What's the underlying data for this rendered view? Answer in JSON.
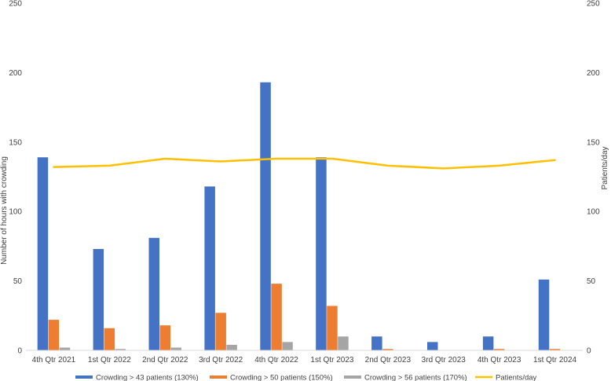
{
  "chart_data": {
    "type": "bar",
    "title": "",
    "categories": [
      "4th Qtr 2021",
      "1st Qtr 2022",
      "2nd Qtr 2022",
      "3rd Qtr 2022",
      "4th Qtr 2022",
      "1st Qtr 2023",
      "2nd Qtr 2023",
      "3rd Qtr 2023",
      "4th Qtr 2023",
      "1st Qtr 2024"
    ],
    "series": [
      {
        "name": "Crowding > 43 patients (130%)",
        "type": "bar",
        "axis": "left",
        "color": "#4472C4",
        "values": [
          139,
          73,
          81,
          118,
          193,
          139,
          10,
          6,
          10,
          51
        ]
      },
      {
        "name": "Crowding > 50 patients (150%)",
        "type": "bar",
        "axis": "left",
        "color": "#ED7D31",
        "values": [
          22,
          16,
          18,
          27,
          48,
          32,
          1,
          0,
          1,
          1
        ]
      },
      {
        "name": "Crowding > 56 patients (170%)",
        "type": "bar",
        "axis": "left",
        "color": "#A5A5A5",
        "values": [
          2,
          1,
          2,
          4,
          6,
          10,
          0,
          0,
          0,
          0
        ]
      },
      {
        "name": "Patients/day",
        "type": "line",
        "axis": "right",
        "color": "#FFC000",
        "values": [
          132,
          133,
          138,
          136,
          138,
          138,
          133,
          131,
          133,
          137
        ]
      }
    ],
    "ylabel": "Number of hours with crowding",
    "y2label": "Patients/day",
    "ylim": [
      0,
      250
    ],
    "y2lim": [
      0,
      250
    ],
    "yticks": [
      0,
      50,
      100,
      150,
      200,
      250
    ],
    "y2ticks": [
      0,
      50,
      100,
      150,
      200,
      250
    ],
    "grid": false,
    "legend_position": "bottom"
  }
}
